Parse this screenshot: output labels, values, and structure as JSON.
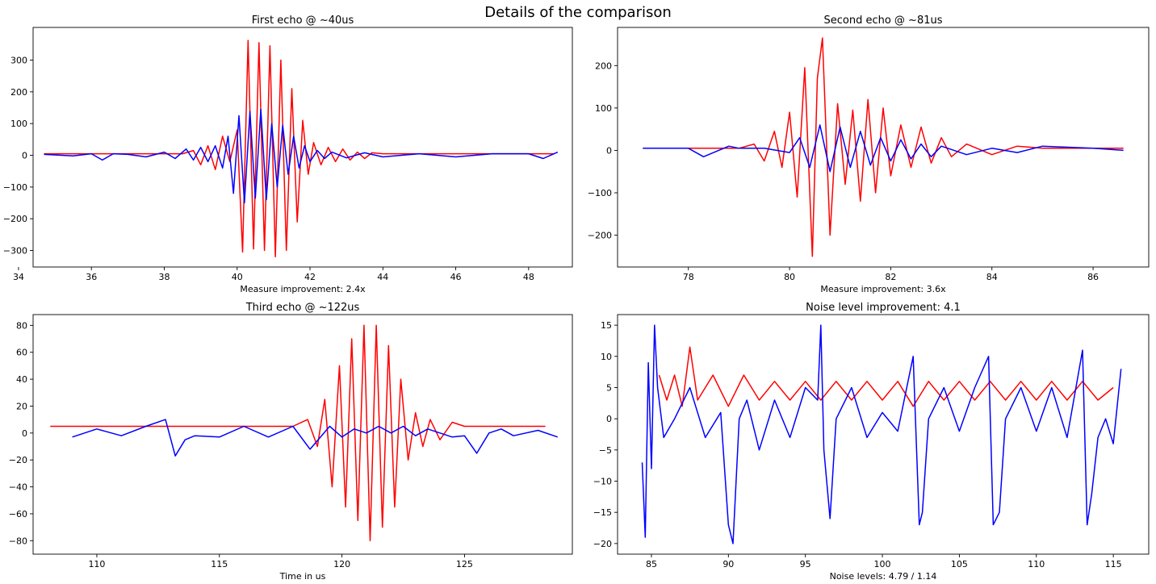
{
  "figure": {
    "suptitle": "Details of the comparison",
    "colors": {
      "red": "#ff0000",
      "blue": "#0000ff"
    }
  },
  "chart_data": [
    {
      "type": "line",
      "title": "First echo @ ~40us",
      "xlabel": "Measure improvement: 2.4x",
      "xlim": [
        34.4,
        49.2
      ],
      "ylim": [
        -352,
        403
      ],
      "xticks": [
        34,
        36,
        38,
        40,
        42,
        44,
        46,
        48
      ],
      "yticks": [
        -300,
        -200,
        -100,
        0,
        100,
        200,
        300
      ],
      "series": [
        {
          "color": "#ff0000",
          "x": [
            34.7,
            37,
            38.5,
            38.8,
            39.0,
            39.2,
            39.4,
            39.6,
            39.8,
            40.0,
            40.15,
            40.3,
            40.45,
            40.6,
            40.75,
            40.9,
            41.05,
            41.2,
            41.35,
            41.5,
            41.65,
            41.8,
            41.95,
            42.1,
            42.3,
            42.5,
            42.7,
            42.9,
            43.1,
            43.3,
            43.5,
            43.7,
            44,
            44.5,
            45,
            46,
            47,
            48,
            48.7
          ],
          "y": [
            5,
            5,
            5,
            15,
            -30,
            30,
            -45,
            60,
            -20,
            80,
            -305,
            362,
            -295,
            355,
            -300,
            345,
            -320,
            300,
            -300,
            210,
            -210,
            110,
            -60,
            40,
            -30,
            25,
            -20,
            20,
            -15,
            10,
            -10,
            8,
            5,
            5,
            5,
            5,
            5,
            5,
            5
          ]
        },
        {
          "color": "#0000ff",
          "x": [
            34.7,
            35.5,
            36,
            36.3,
            36.6,
            37,
            37.5,
            38,
            38.3,
            38.6,
            38.8,
            39.0,
            39.2,
            39.4,
            39.6,
            39.75,
            39.9,
            40.05,
            40.2,
            40.35,
            40.5,
            40.65,
            40.8,
            40.95,
            41.1,
            41.25,
            41.4,
            41.55,
            41.7,
            41.85,
            42.0,
            42.2,
            42.4,
            42.6,
            43,
            43.5,
            44,
            45,
            46,
            47,
            48,
            48.4,
            48.7,
            48.8
          ],
          "y": [
            3,
            -2,
            5,
            -15,
            5,
            3,
            -5,
            10,
            -10,
            20,
            -15,
            25,
            -20,
            30,
            -40,
            60,
            -120,
            125,
            -150,
            138,
            -135,
            145,
            -140,
            100,
            -100,
            95,
            -60,
            60,
            -40,
            30,
            -20,
            15,
            -10,
            10,
            -8,
            8,
            -5,
            5,
            -5,
            5,
            5,
            -10,
            5,
            10
          ]
        }
      ]
    },
    {
      "type": "line",
      "title": "Second echo @ ~81us",
      "xlabel": "Measure improvement: 3.6x",
      "xlim": [
        76.6,
        87.1
      ],
      "ylim": [
        -275,
        290
      ],
      "xticks": [
        78,
        80,
        82,
        84,
        86
      ],
      "yticks": [
        -200,
        -100,
        0,
        100,
        200
      ],
      "series": [
        {
          "color": "#ff0000",
          "x": [
            77.1,
            78,
            79,
            79.3,
            79.5,
            79.7,
            79.85,
            80.0,
            80.15,
            80.3,
            80.45,
            80.55,
            80.65,
            80.8,
            80.95,
            81.1,
            81.25,
            81.4,
            81.55,
            81.7,
            81.85,
            82.0,
            82.2,
            82.4,
            82.6,
            82.8,
            83.0,
            83.2,
            83.5,
            84,
            84.5,
            85,
            86,
            86.6
          ],
          "y": [
            5,
            5,
            5,
            15,
            -25,
            45,
            -40,
            90,
            -110,
            195,
            -250,
            170,
            265,
            -200,
            110,
            -80,
            95,
            -120,
            120,
            -100,
            100,
            -60,
            60,
            -40,
            55,
            -30,
            30,
            -15,
            15,
            -10,
            10,
            5,
            5,
            5
          ]
        },
        {
          "color": "#0000ff",
          "x": [
            77.1,
            78,
            78.3,
            78.8,
            79,
            79.5,
            80,
            80.2,
            80.4,
            80.6,
            80.8,
            81.0,
            81.2,
            81.4,
            81.6,
            81.8,
            82.0,
            82.2,
            82.4,
            82.6,
            82.8,
            83.0,
            83.5,
            84,
            84.5,
            85,
            86,
            86.6
          ],
          "y": [
            5,
            5,
            -15,
            10,
            5,
            5,
            -5,
            30,
            -40,
            60,
            -50,
            55,
            -40,
            45,
            -35,
            30,
            -25,
            25,
            -20,
            15,
            -15,
            10,
            -10,
            5,
            -5,
            10,
            5,
            0
          ]
        }
      ]
    },
    {
      "type": "line",
      "title": "Third echo @ ~122us",
      "xlabel": "Time in us",
      "xlim": [
        107.4,
        129.4
      ],
      "ylim": [
        -90,
        88
      ],
      "xticks": [
        110,
        115,
        120,
        125
      ],
      "yticks": [
        -80,
        -60,
        -40,
        -20,
        0,
        20,
        40,
        60,
        80
      ],
      "series": [
        {
          "color": "#ff0000",
          "x": [
            108.1,
            110,
            112,
            114,
            116,
            118,
            118.6,
            119,
            119.3,
            119.6,
            119.9,
            120.15,
            120.4,
            120.65,
            120.9,
            121.15,
            121.4,
            121.65,
            121.9,
            122.15,
            122.4,
            122.7,
            123,
            123.3,
            123.6,
            124,
            124.5,
            125,
            126,
            127,
            128.3
          ],
          "y": [
            5,
            5,
            5,
            5,
            5,
            5,
            10,
            -10,
            25,
            -40,
            50,
            -55,
            70,
            -65,
            80,
            -80,
            80,
            -70,
            65,
            -55,
            40,
            -20,
            15,
            -10,
            10,
            -5,
            8,
            5,
            5,
            5,
            5
          ]
        },
        {
          "color": "#0000ff",
          "x": [
            109,
            110,
            111,
            112,
            112.8,
            113.2,
            113.6,
            114,
            115,
            116,
            117,
            118,
            118.7,
            119.5,
            120,
            120.5,
            121,
            121.5,
            122,
            122.5,
            123,
            123.5,
            124,
            124.5,
            125,
            125.5,
            126,
            126.5,
            127,
            128,
            128.8
          ],
          "y": [
            -3,
            3,
            -2,
            5,
            10,
            -17,
            -5,
            -2,
            -3,
            5,
            -3,
            5,
            -12,
            5,
            -3,
            3,
            0,
            5,
            0,
            5,
            -2,
            3,
            0,
            -3,
            -2,
            -15,
            0,
            3,
            -2,
            2,
            -3
          ]
        }
      ]
    },
    {
      "type": "line",
      "title": "Noise level improvement: 4.1",
      "xlabel": "Noise levels: 4.79 / 1.14",
      "xlim": [
        82.8,
        117.3
      ],
      "ylim": [
        -21.7,
        16.7
      ],
      "xticks": [
        85,
        90,
        95,
        100,
        105,
        110,
        115
      ],
      "yticks": [
        -20,
        -15,
        -10,
        -5,
        0,
        5,
        10,
        15
      ],
      "series": [
        {
          "color": "#ff0000",
          "x": [
            85.5,
            86,
            86.5,
            87,
            87.5,
            88,
            89,
            90,
            91,
            92,
            93,
            94,
            95,
            96,
            97,
            98,
            99,
            100,
            101,
            102,
            103,
            104,
            105,
            106,
            107,
            108,
            109,
            110,
            111,
            112,
            113,
            114,
            115
          ],
          "y": [
            7,
            3,
            7,
            2,
            11.5,
            3,
            7,
            2,
            7,
            3,
            6,
            3,
            6,
            3,
            6,
            3,
            6,
            3,
            6,
            2,
            6,
            3,
            6,
            3,
            6,
            3,
            6,
            3,
            6,
            3,
            6,
            3,
            5
          ]
        },
        {
          "color": "#0000ff",
          "x": [
            84.4,
            84.6,
            84.8,
            85,
            85.2,
            85.4,
            85.8,
            86.5,
            87.5,
            88.5,
            89.5,
            90.0,
            90.3,
            90.7,
            91.2,
            92,
            93,
            94,
            95,
            95.8,
            96.0,
            96.2,
            96.6,
            97,
            98,
            99,
            100,
            101,
            102,
            102.4,
            102.6,
            103,
            104,
            105,
            106,
            106.9,
            107.2,
            107.6,
            108,
            109,
            110,
            111,
            112,
            113,
            113.3,
            113.6,
            114,
            114.5,
            115,
            115.5
          ],
          "y": [
            -7,
            -19,
            9,
            -8,
            15,
            5,
            -3,
            0,
            5,
            -3,
            1,
            -17,
            -20,
            0,
            3,
            -5,
            3,
            -3,
            5,
            3,
            15,
            -5,
            -16,
            0,
            5,
            -3,
            1,
            -2,
            10,
            -17,
            -15,
            0,
            5,
            -2,
            5,
            10,
            -17,
            -15,
            0,
            5,
            -2,
            5,
            -3,
            11,
            -17,
            -12,
            -3,
            0,
            -4,
            8
          ]
        }
      ]
    }
  ]
}
